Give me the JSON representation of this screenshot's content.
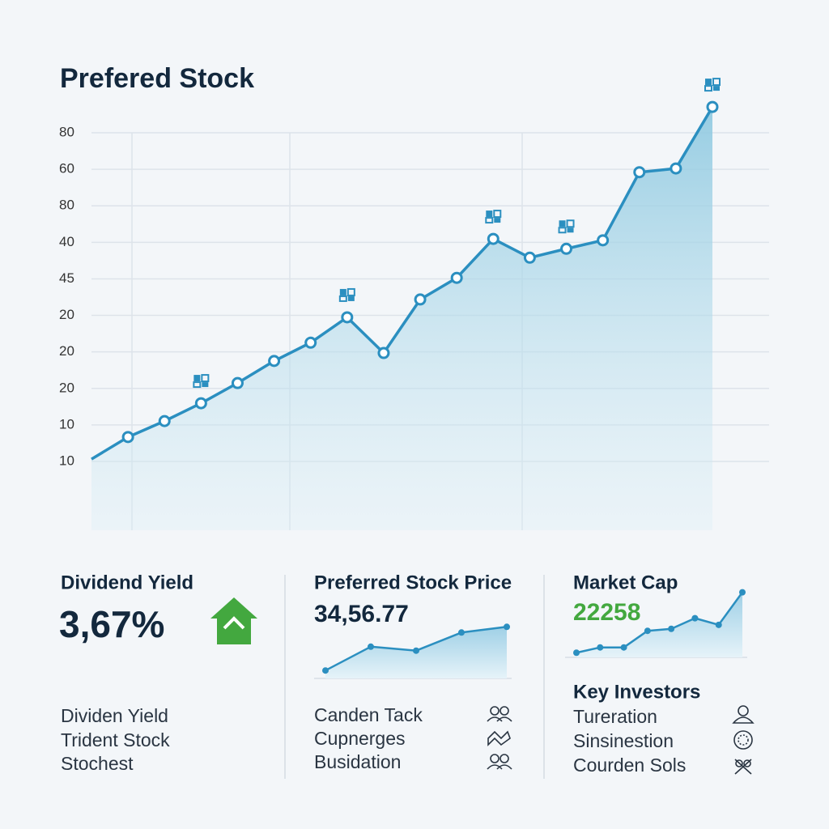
{
  "chart_data": {
    "type": "line",
    "title": "Prefered Stock",
    "color": "#2b8fc0",
    "y_axis_labels": [
      "80",
      "60",
      "80",
      "40",
      "45",
      "20",
      "20",
      "20",
      "10",
      "10"
    ],
    "ylim": [
      10,
      80
    ],
    "values": [
      10.5,
      15.2,
      18.6,
      22.4,
      26.7,
      31.4,
      35.3,
      40.7,
      33.1,
      44.5,
      49.1,
      57.4,
      53.4,
      55.3,
      57.1,
      71.6,
      72.4,
      85.5
    ]
  },
  "cards": [
    {
      "title": "Dividend Yield",
      "value": "3,67%",
      "items": [
        "Dividen Yield",
        "Trident Stock",
        "Stochest"
      ]
    },
    {
      "title": "Preferred Stock Price",
      "value": "34,56.77",
      "sparkline": {
        "type": "line",
        "ylim": [
          0,
          100
        ],
        "values": [
          14,
          56,
          49,
          81,
          91
        ]
      },
      "items": [
        "Canden Tack",
        "Cupnerges",
        "Busidation"
      ]
    },
    {
      "title": "Market Cap",
      "value": "22258",
      "sparkline": {
        "type": "line",
        "ylim": [
          0,
          100
        ],
        "values": [
          7,
          15,
          15,
          40,
          43,
          59,
          49,
          98
        ]
      }
    },
    {
      "title": "Key Investors",
      "items": [
        "Tureration",
        "Sinsinestion",
        "Courden Sols"
      ]
    }
  ]
}
